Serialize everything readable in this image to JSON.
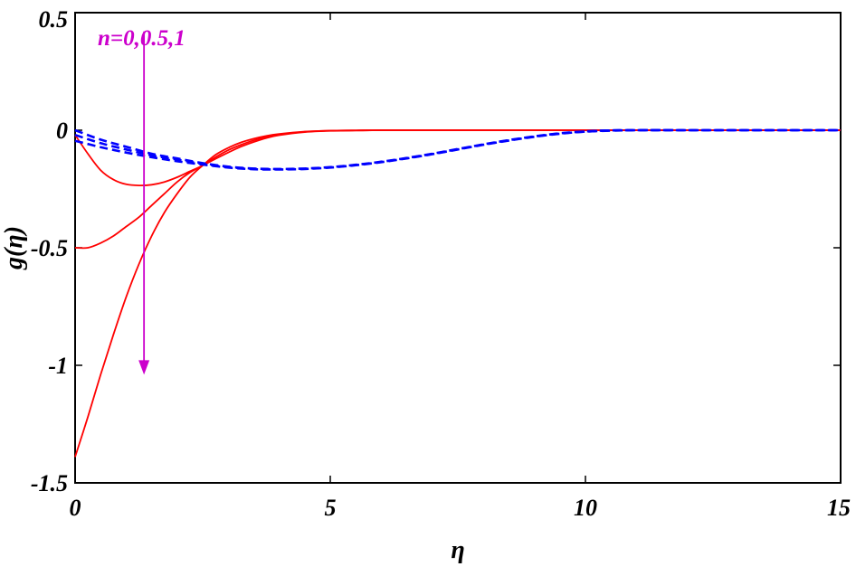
{
  "chart_data": {
    "type": "line",
    "xlabel": "η",
    "ylabel": "g(η)",
    "xlim": [
      0,
      15
    ],
    "ylim": [
      -1.5,
      0.5
    ],
    "xticks": [
      "0",
      "5",
      "10",
      "15"
    ],
    "yticks": [
      "0.5",
      "0",
      "-0.5",
      "-1",
      "-1.5"
    ],
    "grid": false,
    "annotation": {
      "text": "n=0,0.5,1",
      "color": "#cc00cc",
      "arrow_x": 1.35,
      "arrow_from_y": 0.42,
      "arrow_to_y": -1.04
    },
    "series": [
      {
        "style": "solid",
        "color": "#ff0000",
        "x": [
          0,
          0.25,
          0.5,
          0.75,
          1,
          1.25,
          1.5,
          1.75,
          2,
          2.25,
          2.5,
          2.75,
          3,
          3.25,
          3.5,
          3.75,
          4,
          4.5,
          5,
          5.5,
          6,
          7,
          8,
          10,
          12,
          15
        ],
        "y": [
          -0.02,
          -0.1,
          -0.17,
          -0.21,
          -0.23,
          -0.235,
          -0.232,
          -0.22,
          -0.2,
          -0.175,
          -0.15,
          -0.122,
          -0.095,
          -0.07,
          -0.05,
          -0.033,
          -0.021,
          -0.008,
          -0.003,
          -0.001,
          0,
          0,
          0,
          0,
          0,
          0
        ]
      },
      {
        "style": "solid",
        "color": "#ff0000",
        "x": [
          0,
          0.25,
          0.5,
          0.75,
          1,
          1.25,
          1.5,
          1.75,
          2,
          2.25,
          2.5,
          2.75,
          3,
          3.25,
          3.5,
          3.75,
          4,
          4.5,
          5,
          5.5,
          6,
          7,
          8,
          10,
          12,
          15
        ],
        "y": [
          -0.5,
          -0.5,
          -0.48,
          -0.45,
          -0.41,
          -0.37,
          -0.32,
          -0.27,
          -0.22,
          -0.18,
          -0.15,
          -0.115,
          -0.085,
          -0.062,
          -0.043,
          -0.029,
          -0.019,
          -0.007,
          -0.002,
          -0.001,
          0,
          0,
          0,
          0,
          0,
          0
        ]
      },
      {
        "style": "solid",
        "color": "#ff0000",
        "x": [
          0,
          0.25,
          0.5,
          0.75,
          1,
          1.25,
          1.5,
          1.75,
          2,
          2.25,
          2.5,
          2.75,
          3,
          3.25,
          3.5,
          3.75,
          4,
          4.5,
          5,
          5.5,
          6,
          7,
          8,
          10,
          12,
          15
        ],
        "y": [
          -1.39,
          -1.22,
          -1.04,
          -0.87,
          -0.71,
          -0.57,
          -0.45,
          -0.35,
          -0.27,
          -0.2,
          -0.15,
          -0.105,
          -0.075,
          -0.052,
          -0.036,
          -0.024,
          -0.016,
          -0.006,
          -0.002,
          -0.001,
          0,
          0,
          0,
          0,
          0,
          0
        ]
      },
      {
        "style": "dashed",
        "color": "#0000ff",
        "x": [
          0,
          0.5,
          1,
          1.5,
          2,
          2.5,
          3,
          3.5,
          4,
          4.5,
          5,
          5.5,
          6,
          6.5,
          7,
          7.5,
          8,
          8.5,
          9,
          9.5,
          10,
          10.5,
          11,
          12,
          13,
          14,
          15
        ],
        "y": [
          0,
          -0.04,
          -0.07,
          -0.1,
          -0.12,
          -0.14,
          -0.155,
          -0.163,
          -0.165,
          -0.163,
          -0.157,
          -0.147,
          -0.134,
          -0.118,
          -0.1,
          -0.08,
          -0.06,
          -0.042,
          -0.026,
          -0.013,
          -0.005,
          -0.001,
          0,
          0,
          0,
          0,
          0
        ]
      },
      {
        "style": "dashed",
        "color": "#0000ff",
        "x": [
          0,
          0.5,
          1,
          1.5,
          2,
          2.5,
          3,
          3.5,
          4,
          4.5,
          5,
          5.5,
          6,
          6.5,
          7,
          7.5,
          8,
          8.5,
          9,
          9.5,
          10,
          10.5,
          11,
          12,
          13,
          14,
          15
        ],
        "y": [
          -0.02,
          -0.055,
          -0.082,
          -0.107,
          -0.125,
          -0.143,
          -0.157,
          -0.164,
          -0.166,
          -0.164,
          -0.158,
          -0.148,
          -0.135,
          -0.119,
          -0.101,
          -0.081,
          -0.061,
          -0.043,
          -0.027,
          -0.014,
          -0.006,
          -0.001,
          0,
          0,
          0,
          0,
          0
        ]
      },
      {
        "style": "dashed",
        "color": "#0000ff",
        "x": [
          0,
          0.5,
          1,
          1.5,
          2,
          2.5,
          3,
          3.5,
          4,
          4.5,
          5,
          5.5,
          6,
          6.5,
          7,
          7.5,
          8,
          8.5,
          9,
          9.5,
          10,
          10.5,
          11,
          12,
          13,
          14,
          15
        ],
        "y": [
          -0.045,
          -0.072,
          -0.095,
          -0.115,
          -0.132,
          -0.146,
          -0.159,
          -0.166,
          -0.167,
          -0.165,
          -0.159,
          -0.149,
          -0.136,
          -0.12,
          -0.102,
          -0.082,
          -0.062,
          -0.044,
          -0.028,
          -0.015,
          -0.006,
          -0.002,
          0,
          0,
          0,
          0,
          0
        ]
      }
    ]
  }
}
